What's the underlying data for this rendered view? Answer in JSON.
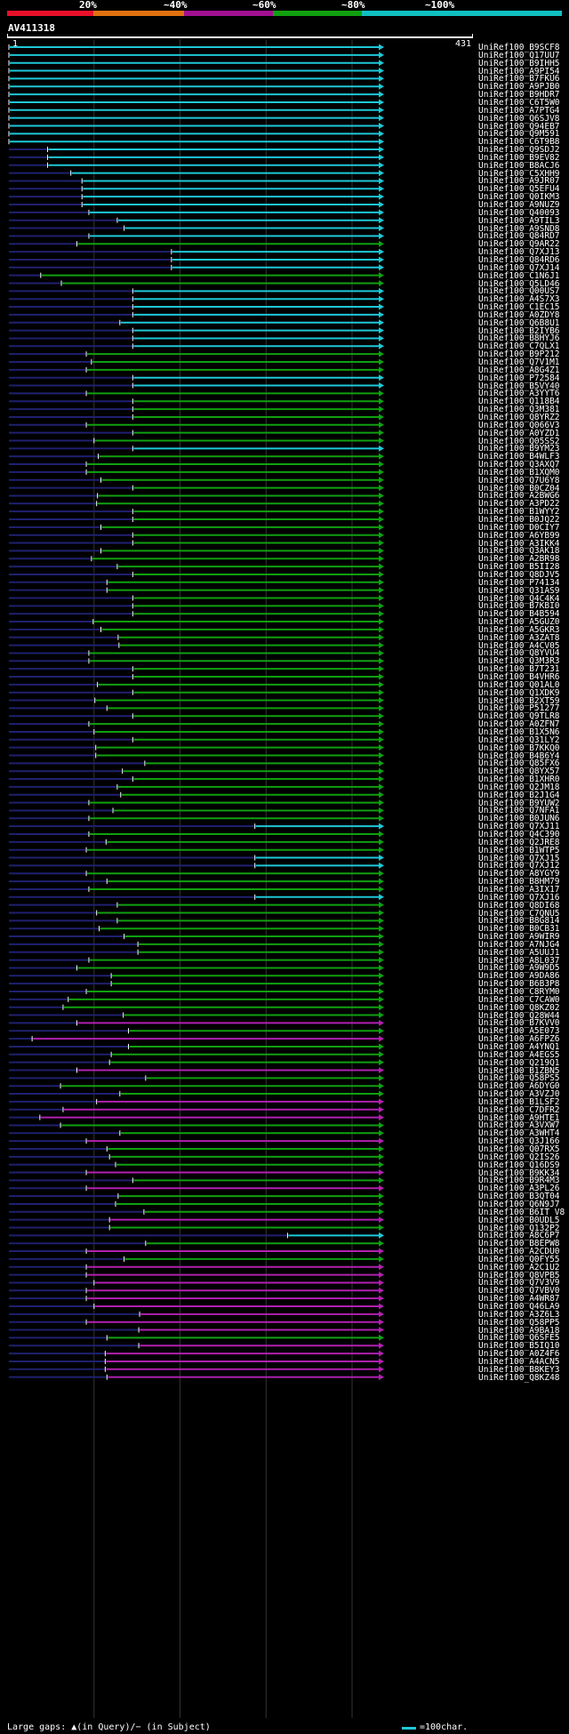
{
  "scale": {
    "labels": [
      "20%",
      "~40%",
      "~60%",
      "~80%",
      "~100%"
    ],
    "colors": [
      "#e8102a",
      "#e07010",
      "#a01090",
      "#10a010",
      "#10c0c0"
    ]
  },
  "query": {
    "name": "AV411318",
    "start": "1",
    "end": "431",
    "length": 431
  },
  "colors": {
    "cyan": "#1ec8d8",
    "green": "#10a010",
    "magenta": "#b020b0",
    "navy": "#202070"
  },
  "footer": {
    "left": "Large gaps: ▲(in Query)/− (in Subject)",
    "right": "=100char."
  },
  "hits": [
    {
      "name": "UniRef100_B9SCF8",
      "start": 1,
      "color": "cyan"
    },
    {
      "name": "UniRef100_Q17UU7",
      "start": 1,
      "color": "cyan"
    },
    {
      "name": "UniRef100_B9IHH5",
      "start": 1,
      "color": "cyan"
    },
    {
      "name": "UniRef100_A9PI54",
      "start": 1,
      "color": "cyan"
    },
    {
      "name": "UniRef100_B7FKU6",
      "start": 1,
      "color": "cyan"
    },
    {
      "name": "UniRef100_A9PJB0",
      "start": 1,
      "color": "cyan"
    },
    {
      "name": "UniRef100_B9HDR7",
      "start": 1,
      "color": "cyan"
    },
    {
      "name": "UniRef100_C6T5W0",
      "start": 1,
      "color": "cyan"
    },
    {
      "name": "UniRef100_A7PTG4",
      "start": 1,
      "color": "cyan"
    },
    {
      "name": "UniRef100_Q6SJV8",
      "start": 1,
      "color": "cyan"
    },
    {
      "name": "UniRef100_Q94EB7",
      "start": 1,
      "color": "cyan"
    },
    {
      "name": "UniRef100_Q9M591",
      "start": 1,
      "color": "cyan"
    },
    {
      "name": "UniRef100_C6T9B8",
      "start": 1,
      "color": "cyan"
    },
    {
      "name": "UniRef100_Q9SDJ2",
      "start": 46,
      "color": "cyan"
    },
    {
      "name": "UniRef100_B9EV82",
      "start": 46,
      "color": "cyan"
    },
    {
      "name": "UniRef100_B8ACJ6",
      "start": 46,
      "color": "cyan"
    },
    {
      "name": "UniRef100_C5XHH9",
      "start": 73,
      "color": "cyan"
    },
    {
      "name": "UniRef100_A9JR07",
      "start": 86,
      "color": "cyan"
    },
    {
      "name": "UniRef100_Q5EFU4",
      "start": 86,
      "color": "cyan"
    },
    {
      "name": "UniRef100_Q0IKM3",
      "start": 86,
      "color": "cyan"
    },
    {
      "name": "UniRef100_A9NUZ9",
      "start": 86,
      "color": "cyan"
    },
    {
      "name": "UniRef100_Q40093",
      "start": 94,
      "color": "cyan"
    },
    {
      "name": "UniRef100_A9TIL3",
      "start": 127,
      "color": "cyan"
    },
    {
      "name": "UniRef100_A9SND8",
      "start": 135,
      "color": "cyan"
    },
    {
      "name": "UniRef100_Q84RD7",
      "start": 94,
      "color": "cyan"
    },
    {
      "name": "UniRef100_Q9AR22",
      "start": 80,
      "color": "green"
    },
    {
      "name": "UniRef100_Q7XJ13",
      "start": 190,
      "color": "cyan"
    },
    {
      "name": "UniRef100_Q84RD6",
      "start": 190,
      "color": "cyan"
    },
    {
      "name": "UniRef100_Q7XJ14",
      "start": 190,
      "color": "cyan"
    },
    {
      "name": "UniRef100_C1N6J1",
      "start": 38,
      "color": "green"
    },
    {
      "name": "UniRef100_Q5LD46",
      "start": 62,
      "color": "green"
    },
    {
      "name": "UniRef100_Q00US7",
      "start": 145,
      "color": "cyan"
    },
    {
      "name": "UniRef100_A4S7X3",
      "start": 145,
      "color": "cyan"
    },
    {
      "name": "UniRef100_C1EC15",
      "start": 145,
      "color": "cyan"
    },
    {
      "name": "UniRef100_A0ZDY8",
      "start": 145,
      "color": "cyan"
    },
    {
      "name": "UniRef100_Q6B8U1",
      "start": 130,
      "color": "cyan"
    },
    {
      "name": "UniRef100_B2IYB6",
      "start": 145,
      "color": "cyan"
    },
    {
      "name": "UniRef100_B8HYJ6",
      "start": 145,
      "color": "cyan"
    },
    {
      "name": "UniRef100_C7QLX1",
      "start": 145,
      "color": "cyan"
    },
    {
      "name": "UniRef100_B9P212",
      "start": 91,
      "color": "green"
    },
    {
      "name": "UniRef100_Q7V1M1",
      "start": 97,
      "color": "green"
    },
    {
      "name": "UniRef100_A8G4Z1",
      "start": 91,
      "color": "green"
    },
    {
      "name": "UniRef100_P72584",
      "start": 145,
      "color": "cyan"
    },
    {
      "name": "UniRef100_B5VY40",
      "start": 145,
      "color": "cyan"
    },
    {
      "name": "UniRef100_A3YYT6",
      "start": 91,
      "color": "green"
    },
    {
      "name": "UniRef100_Q118B4",
      "start": 145,
      "color": "green"
    },
    {
      "name": "UniRef100_Q3M381",
      "start": 145,
      "color": "green"
    },
    {
      "name": "UniRef100_Q8YRZ2",
      "start": 145,
      "color": "green"
    },
    {
      "name": "UniRef100_Q066V3",
      "start": 91,
      "color": "green"
    },
    {
      "name": "UniRef100_A0YZD1",
      "start": 145,
      "color": "green"
    },
    {
      "name": "UniRef100_Q05SS2",
      "start": 100,
      "color": "green"
    },
    {
      "name": "UniRef100_B9YM23",
      "start": 145,
      "color": "cyan"
    },
    {
      "name": "UniRef100_B4WLF3",
      "start": 105,
      "color": "green"
    },
    {
      "name": "UniRef100_Q3AXQ7",
      "start": 91,
      "color": "green"
    },
    {
      "name": "UniRef100_B1XQM0",
      "start": 91,
      "color": "green"
    },
    {
      "name": "UniRef100_Q7U6Y8",
      "start": 108,
      "color": "green"
    },
    {
      "name": "UniRef100_B0CZ04",
      "start": 145,
      "color": "green"
    },
    {
      "name": "UniRef100_A2BWG6",
      "start": 104,
      "color": "green"
    },
    {
      "name": "UniRef100_A3PD22",
      "start": 103,
      "color": "green"
    },
    {
      "name": "UniRef100_B1WYY2",
      "start": 145,
      "color": "green"
    },
    {
      "name": "UniRef100_B0JQ22",
      "start": 145,
      "color": "green"
    },
    {
      "name": "UniRef100_D0CIY7",
      "start": 108,
      "color": "green"
    },
    {
      "name": "UniRef100_A6YB99",
      "start": 145,
      "color": "green"
    },
    {
      "name": "UniRef100_A3IKK4",
      "start": 145,
      "color": "green"
    },
    {
      "name": "UniRef100_Q3AK18",
      "start": 108,
      "color": "green"
    },
    {
      "name": "UniRef100_A2BR98",
      "start": 97,
      "color": "green"
    },
    {
      "name": "UniRef100_B5II28",
      "start": 127,
      "color": "green"
    },
    {
      "name": "UniRef100_Q8DJV5",
      "start": 145,
      "color": "green"
    },
    {
      "name": "UniRef100_P74134",
      "start": 115,
      "color": "green"
    },
    {
      "name": "UniRef100_Q31AS9",
      "start": 115,
      "color": "green"
    },
    {
      "name": "UniRef100_Q4C4K4",
      "start": 145,
      "color": "green"
    },
    {
      "name": "UniRef100_B7KBI0",
      "start": 145,
      "color": "green"
    },
    {
      "name": "UniRef100_B4B594",
      "start": 145,
      "color": "green"
    },
    {
      "name": "UniRef100_A5GUZ0",
      "start": 99,
      "color": "green"
    },
    {
      "name": "UniRef100_A5GKR3",
      "start": 108,
      "color": "green"
    },
    {
      "name": "UniRef100_A3ZAT8",
      "start": 128,
      "color": "green"
    },
    {
      "name": "UniRef100_A4CV05",
      "start": 129,
      "color": "green"
    },
    {
      "name": "UniRef100_Q8YVU4",
      "start": 94,
      "color": "green"
    },
    {
      "name": "UniRef100_Q3M3R3",
      "start": 94,
      "color": "green"
    },
    {
      "name": "UniRef100_B7T231",
      "start": 145,
      "color": "green"
    },
    {
      "name": "UniRef100_B4VHR6",
      "start": 145,
      "color": "green"
    },
    {
      "name": "UniRef100_Q01AL0",
      "start": 104,
      "color": "green"
    },
    {
      "name": "UniRef100_Q1XDK9",
      "start": 145,
      "color": "green"
    },
    {
      "name": "UniRef100_B2XT59",
      "start": 101,
      "color": "green"
    },
    {
      "name": "UniRef100_P51277",
      "start": 115,
      "color": "green"
    },
    {
      "name": "UniRef100_Q9TLR8",
      "start": 145,
      "color": "green"
    },
    {
      "name": "UniRef100_A0ZFN7",
      "start": 94,
      "color": "green"
    },
    {
      "name": "UniRef100_B1X5N6",
      "start": 100,
      "color": "green"
    },
    {
      "name": "UniRef100_Q31LY2",
      "start": 145,
      "color": "green"
    },
    {
      "name": "UniRef100_B7KKQ0",
      "start": 102,
      "color": "green"
    },
    {
      "name": "UniRef100_B4B6Y4",
      "start": 102,
      "color": "green"
    },
    {
      "name": "UniRef100_Q85FX6",
      "start": 159,
      "color": "green"
    },
    {
      "name": "UniRef100_Q8YX57",
      "start": 133,
      "color": "green"
    },
    {
      "name": "UniRef100_B1XHR0",
      "start": 145,
      "color": "green"
    },
    {
      "name": "UniRef100_Q2JM18",
      "start": 127,
      "color": "green"
    },
    {
      "name": "UniRef100_B2J1G4",
      "start": 131,
      "color": "green"
    },
    {
      "name": "UniRef100_B9YUW2",
      "start": 94,
      "color": "green"
    },
    {
      "name": "UniRef100_Q7NFA1",
      "start": 122,
      "color": "green"
    },
    {
      "name": "UniRef100_B0JUN6",
      "start": 94,
      "color": "green"
    },
    {
      "name": "UniRef100_Q7XJ11",
      "start": 287,
      "color": "cyan"
    },
    {
      "name": "UniRef100_Q4C390",
      "start": 94,
      "color": "green"
    },
    {
      "name": "UniRef100_Q2JRE8",
      "start": 114,
      "color": "green"
    },
    {
      "name": "UniRef100_B1WTP5",
      "start": 91,
      "color": "green"
    },
    {
      "name": "UniRef100_Q7XJ15",
      "start": 287,
      "color": "cyan"
    },
    {
      "name": "UniRef100_Q7XJ12",
      "start": 287,
      "color": "cyan"
    },
    {
      "name": "UniRef100_A8YGY9",
      "start": 91,
      "color": "green"
    },
    {
      "name": "UniRef100_B8HM79",
      "start": 115,
      "color": "green"
    },
    {
      "name": "UniRef100_A3IX17",
      "start": 94,
      "color": "green"
    },
    {
      "name": "UniRef100_Q7XJ16",
      "start": 287,
      "color": "cyan"
    },
    {
      "name": "UniRef100_Q8DI68",
      "start": 127,
      "color": "green"
    },
    {
      "name": "UniRef100_C7QNU5",
      "start": 103,
      "color": "green"
    },
    {
      "name": "UniRef100_B8G814",
      "start": 127,
      "color": "green"
    },
    {
      "name": "UniRef100_B0CB31",
      "start": 106,
      "color": "green"
    },
    {
      "name": "UniRef100_A9WIR9",
      "start": 135,
      "color": "green"
    },
    {
      "name": "UniRef100_A7NJG4",
      "start": 151,
      "color": "green"
    },
    {
      "name": "UniRef100_A5UUJ1",
      "start": 151,
      "color": "green"
    },
    {
      "name": "UniRef100_A8L037",
      "start": 94,
      "color": "green"
    },
    {
      "name": "UniRef100_A9W9D5",
      "start": 80,
      "color": "green"
    },
    {
      "name": "UniRef100_A9DA86",
      "start": 120,
      "color": "green"
    },
    {
      "name": "UniRef100_B6B3P8",
      "start": 120,
      "color": "green"
    },
    {
      "name": "UniRef100_C8RYM0",
      "start": 91,
      "color": "green"
    },
    {
      "name": "UniRef100_C7CAW0",
      "start": 70,
      "color": "green"
    },
    {
      "name": "UniRef100_Q8KZ02",
      "start": 64,
      "color": "green"
    },
    {
      "name": "UniRef100_Q28W44",
      "start": 134,
      "color": "green"
    },
    {
      "name": "UniRef100_B7KVV0",
      "start": 80,
      "color": "magenta"
    },
    {
      "name": "UniRef100_A5E073",
      "start": 140,
      "color": "green"
    },
    {
      "name": "UniRef100_A6FPZ6",
      "start": 28,
      "color": "magenta"
    },
    {
      "name": "UniRef100_A4YNQ1",
      "start": 140,
      "color": "green"
    },
    {
      "name": "UniRef100_A4EGS5",
      "start": 120,
      "color": "green"
    },
    {
      "name": "UniRef100_Q219Q1",
      "start": 118,
      "color": "green"
    },
    {
      "name": "UniRef100_B1ZBN5",
      "start": 80,
      "color": "magenta"
    },
    {
      "name": "UniRef100_Q58PS5",
      "start": 160,
      "color": "green"
    },
    {
      "name": "UniRef100_A6DYG0",
      "start": 61,
      "color": "green"
    },
    {
      "name": "UniRef100_A3VZJ0",
      "start": 130,
      "color": "green"
    },
    {
      "name": "UniRef100_B1LSF2",
      "start": 103,
      "color": "magenta"
    },
    {
      "name": "UniRef100_C7DFR2",
      "start": 64,
      "color": "magenta"
    },
    {
      "name": "UniRef100_A9HTE1",
      "start": 37,
      "color": "magenta"
    },
    {
      "name": "UniRef100_A3VXW7",
      "start": 61,
      "color": "green"
    },
    {
      "name": "UniRef100_A3WHT4",
      "start": 130,
      "color": "green"
    },
    {
      "name": "UniRef100_Q3J166",
      "start": 91,
      "color": "magenta"
    },
    {
      "name": "UniRef100_Q07RX5",
      "start": 115,
      "color": "green"
    },
    {
      "name": "UniRef100_Q2IS26",
      "start": 118,
      "color": "green"
    },
    {
      "name": "UniRef100_Q16DS9",
      "start": 125,
      "color": "green"
    },
    {
      "name": "UniRef100_B9KK34",
      "start": 91,
      "color": "magenta"
    },
    {
      "name": "UniRef100_B9R4M3",
      "start": 145,
      "color": "green"
    },
    {
      "name": "UniRef100_A3PL26",
      "start": 91,
      "color": "magenta"
    },
    {
      "name": "UniRef100_B3QT04",
      "start": 128,
      "color": "green"
    },
    {
      "name": "UniRef100_Q6N9J7",
      "start": 125,
      "color": "green"
    },
    {
      "name": "UniRef100_B6IT V8",
      "start": 158,
      "color": "green"
    },
    {
      "name": "UniRef100_B0UDL5",
      "start": 118,
      "color": "magenta"
    },
    {
      "name": "UniRef100_Q132P2",
      "start": 118,
      "color": "green"
    },
    {
      "name": "UniRef100_A8C6P7",
      "start": 325,
      "color": "cyan"
    },
    {
      "name": "UniRef100_B8EPW8",
      "start": 160,
      "color": "green"
    },
    {
      "name": "UniRef100_A2CDU0",
      "start": 91,
      "color": "magenta"
    },
    {
      "name": "UniRef100_Q0FY55",
      "start": 135,
      "color": "green"
    },
    {
      "name": "UniRef100_A2C1U2",
      "start": 91,
      "color": "magenta"
    },
    {
      "name": "UniRef100_Q8VPB5",
      "start": 91,
      "color": "magenta"
    },
    {
      "name": "UniRef100_Q7V3V9",
      "start": 100,
      "color": "magenta"
    },
    {
      "name": "UniRef100_Q7VBV0",
      "start": 91,
      "color": "magenta"
    },
    {
      "name": "UniRef100_A4WR87",
      "start": 91,
      "color": "magenta"
    },
    {
      "name": "UniRef100_Q46LA9",
      "start": 100,
      "color": "magenta"
    },
    {
      "name": "UniRef100_A3Z6L3",
      "start": 153,
      "color": "magenta"
    },
    {
      "name": "UniRef100_Q58PP5",
      "start": 91,
      "color": "magenta"
    },
    {
      "name": "UniRef100_A9BA18",
      "start": 152,
      "color": "magenta"
    },
    {
      "name": "UniRef100_Q6SFE5",
      "start": 115,
      "color": "green"
    },
    {
      "name": "UniRef100_B5IQ10",
      "start": 152,
      "color": "magenta"
    },
    {
      "name": "UniRef100_A0Z4F6",
      "start": 113,
      "color": "magenta"
    },
    {
      "name": "UniRef100_A4ACN5",
      "start": 113,
      "color": "magenta"
    },
    {
      "name": "UniRef100_B8KEY3",
      "start": 113,
      "color": "magenta"
    },
    {
      "name": "UniRef100_Q8KZ48",
      "start": 115,
      "color": "magenta"
    }
  ]
}
